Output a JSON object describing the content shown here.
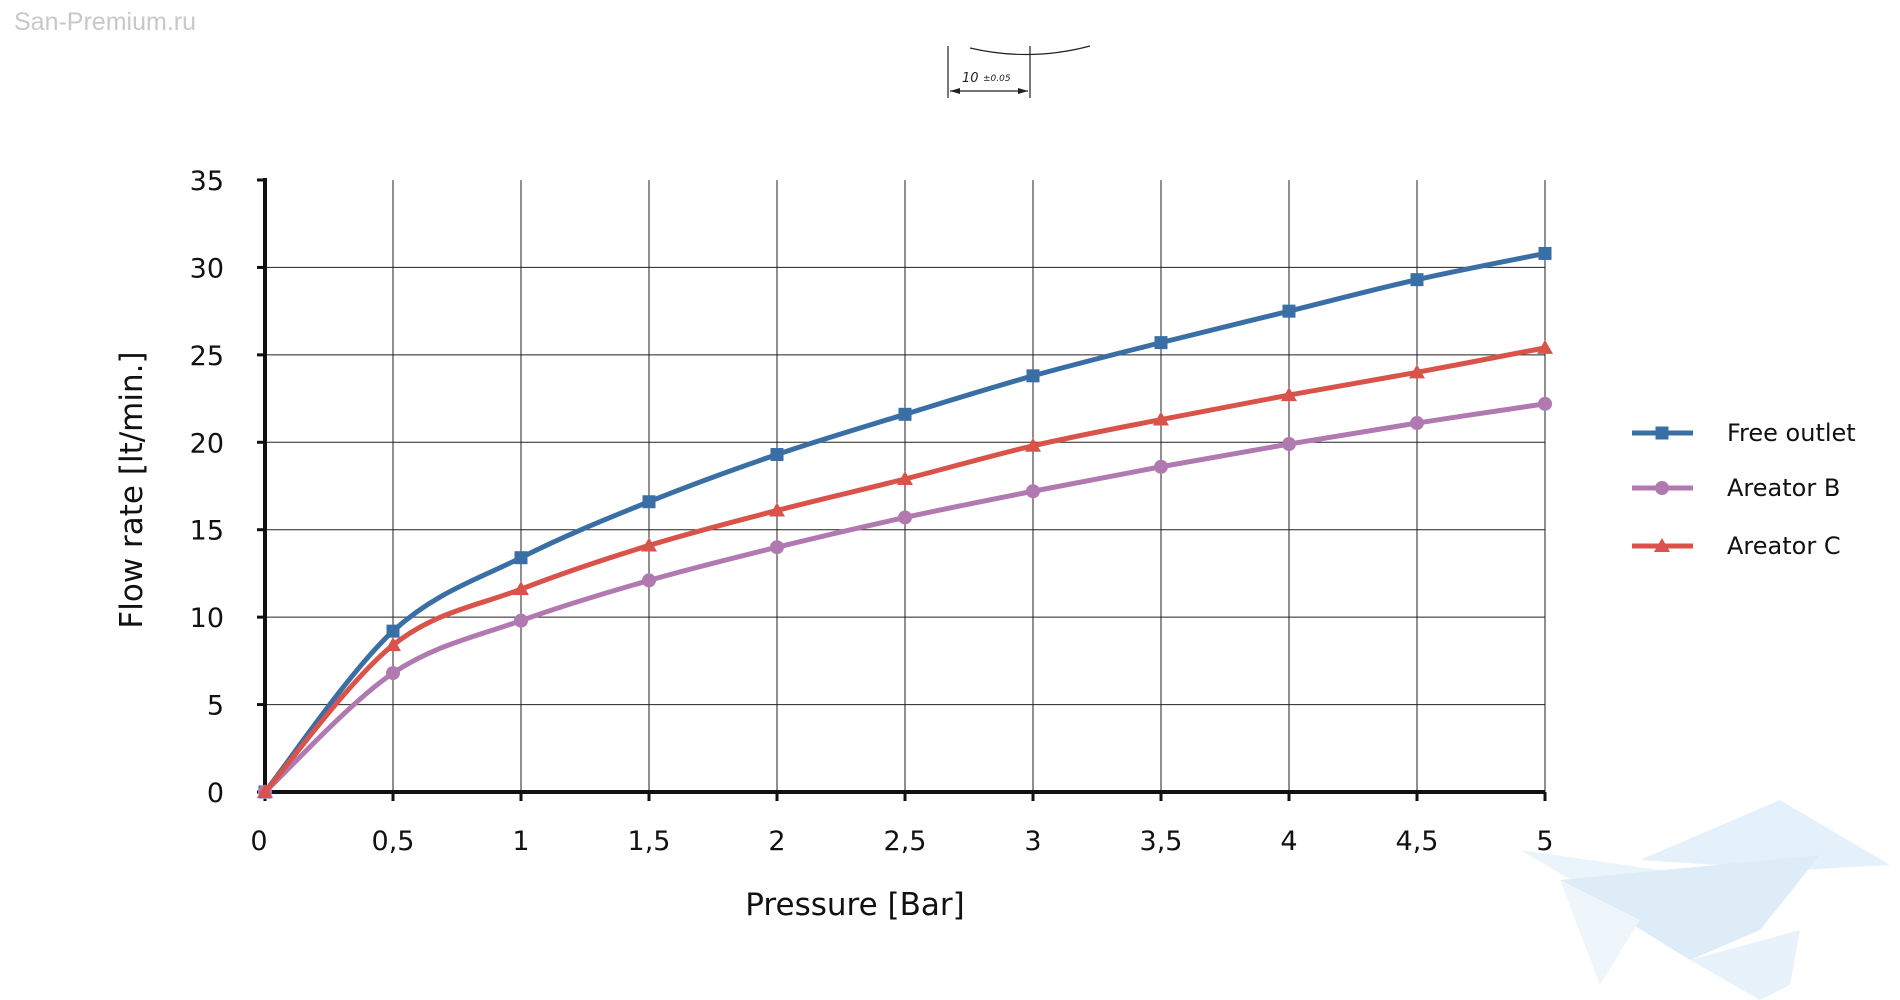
{
  "watermark": "San-Premium.ru",
  "dimension_note": {
    "value": "10",
    "tolerance": "±0.05"
  },
  "chart_data": {
    "type": "line",
    "xlabel": "Pressure [Bar]",
    "ylabel": "Flow rate [lt/min.]",
    "x": [
      0,
      0.5,
      1,
      1.5,
      2,
      2.5,
      3,
      3.5,
      4,
      4.5,
      5
    ],
    "x_tick_labels": [
      "0",
      "0,5",
      "1",
      "1,5",
      "2",
      "2,5",
      "3",
      "3,5",
      "4",
      "4,5",
      "5"
    ],
    "y_tick_labels": [
      "0",
      "5",
      "10",
      "15",
      "20",
      "25",
      "30",
      "35"
    ],
    "y_ticks": [
      0,
      5,
      10,
      15,
      20,
      25,
      30,
      35
    ],
    "xlim": [
      0,
      5
    ],
    "ylim": [
      0,
      35
    ],
    "grid": true,
    "legend_position": "right",
    "series": [
      {
        "name": "Free outlet",
        "color": "#3a6fa6",
        "marker": "square",
        "values": [
          0,
          9.2,
          13.4,
          16.6,
          19.3,
          21.6,
          23.8,
          25.7,
          27.5,
          29.3,
          30.8
        ]
      },
      {
        "name": "Areator B",
        "color": "#b07ab0",
        "marker": "circle",
        "values": [
          0,
          6.8,
          9.8,
          12.1,
          14.0,
          15.7,
          17.2,
          18.6,
          19.9,
          21.1,
          22.2
        ]
      },
      {
        "name": "Areator C",
        "color": "#d9534a",
        "marker": "triangle",
        "values": [
          0,
          8.4,
          11.6,
          14.1,
          16.1,
          17.9,
          19.8,
          21.3,
          22.7,
          24.0,
          25.4
        ]
      }
    ]
  }
}
